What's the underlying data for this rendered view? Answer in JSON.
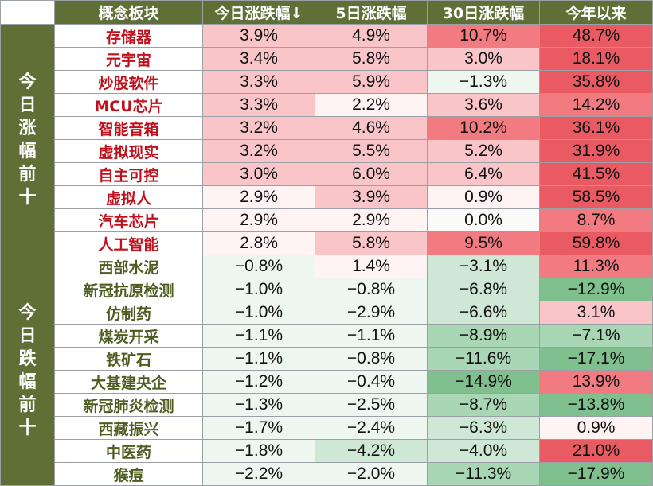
{
  "headers": [
    "概念板块",
    "今日涨跌幅↓",
    "5日涨跌幅",
    "30日涨跌幅",
    "今年以来"
  ],
  "colors": {
    "header_bg": "#5f6f35",
    "up_text": "#c0101c",
    "down_text": "#4d5d1f",
    "positive_scale": [
      "#fff3f4",
      "#f9c5c9",
      "#f27b82",
      "#ea5a62"
    ],
    "negative_scale": [
      "#eef6f0",
      "#cfe8d6",
      "#a9d6b4",
      "#80c08f"
    ]
  },
  "groups": [
    {
      "label": "今日涨幅前十",
      "direction": "up",
      "rows": [
        {
          "name": "存储器",
          "today": "3.9%",
          "d5": "4.9%",
          "d30": "10.7%",
          "ytd": "48.7%"
        },
        {
          "name": "元宇宙",
          "today": "3.4%",
          "d5": "5.8%",
          "d30": "3.0%",
          "ytd": "18.1%"
        },
        {
          "name": "炒股软件",
          "today": "3.3%",
          "d5": "5.9%",
          "d30": "−1.3%",
          "ytd": "35.8%"
        },
        {
          "name": "MCU芯片",
          "today": "3.3%",
          "d5": "2.2%",
          "d30": "3.6%",
          "ytd": "14.2%"
        },
        {
          "name": "智能音箱",
          "today": "3.2%",
          "d5": "4.6%",
          "d30": "10.2%",
          "ytd": "36.1%"
        },
        {
          "name": "虚拟现实",
          "today": "3.2%",
          "d5": "5.5%",
          "d30": "5.2%",
          "ytd": "31.9%"
        },
        {
          "name": "自主可控",
          "today": "3.0%",
          "d5": "6.0%",
          "d30": "6.4%",
          "ytd": "41.5%"
        },
        {
          "name": "虚拟人",
          "today": "2.9%",
          "d5": "3.9%",
          "d30": "0.9%",
          "ytd": "58.5%"
        },
        {
          "name": "汽车芯片",
          "today": "2.9%",
          "d5": "2.9%",
          "d30": "0.0%",
          "ytd": "8.7%"
        },
        {
          "name": "人工智能",
          "today": "2.8%",
          "d5": "5.8%",
          "d30": "9.5%",
          "ytd": "59.8%"
        }
      ]
    },
    {
      "label": "今日跌幅前十",
      "direction": "down",
      "rows": [
        {
          "name": "西部水泥",
          "today": "−0.8%",
          "d5": "1.4%",
          "d30": "−3.1%",
          "ytd": "11.3%"
        },
        {
          "name": "新冠抗原检测",
          "today": "−1.0%",
          "d5": "−0.8%",
          "d30": "−6.8%",
          "ytd": "−12.9%"
        },
        {
          "name": "仿制药",
          "today": "−1.0%",
          "d5": "−2.9%",
          "d30": "−6.6%",
          "ytd": "3.1%"
        },
        {
          "name": "煤炭开采",
          "today": "−1.1%",
          "d5": "−1.1%",
          "d30": "−8.9%",
          "ytd": "−7.1%"
        },
        {
          "name": "铁矿石",
          "today": "−1.1%",
          "d5": "−0.8%",
          "d30": "−11.6%",
          "ytd": "−17.1%"
        },
        {
          "name": "大基建央企",
          "today": "−1.2%",
          "d5": "−0.4%",
          "d30": "−14.9%",
          "ytd": "13.9%"
        },
        {
          "name": "新冠肺炎检测",
          "today": "−1.3%",
          "d5": "−2.5%",
          "d30": "−8.7%",
          "ytd": "−13.8%"
        },
        {
          "name": "西藏振兴",
          "today": "−1.7%",
          "d5": "−2.4%",
          "d30": "−6.3%",
          "ytd": "0.9%"
        },
        {
          "name": "中医药",
          "today": "−1.8%",
          "d5": "−4.2%",
          "d30": "−4.0%",
          "ytd": "21.0%"
        },
        {
          "name": "猴痘",
          "today": "−2.2%",
          "d5": "−2.0%",
          "d30": "−11.3%",
          "ytd": "−17.9%"
        }
      ]
    }
  ]
}
